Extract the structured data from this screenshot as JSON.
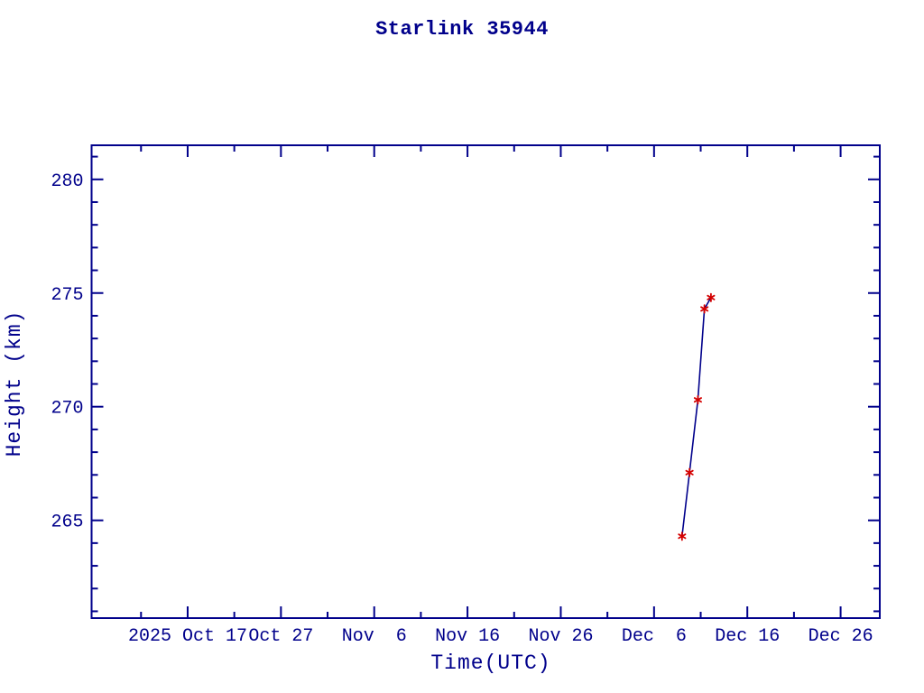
{
  "chart_data": {
    "type": "line",
    "title": "Starlink 35944",
    "xlabel": "Time(UTC)",
    "ylabel": "Height (km)",
    "x_unit": "days since 2025 Oct 07 (UTC)",
    "xlim_days": [
      -0.3,
      84.2
    ],
    "ylim": [
      260.7,
      281.5
    ],
    "grid": false,
    "legend": null,
    "x_major_ticks": [
      {
        "day": 10,
        "label": "2025 Oct 17"
      },
      {
        "day": 20,
        "label": "Oct 27"
      },
      {
        "day": 30,
        "label": "Nov  6"
      },
      {
        "day": 40,
        "label": "Nov 16"
      },
      {
        "day": 50,
        "label": "Nov 26"
      },
      {
        "day": 60,
        "label": "Dec  6"
      },
      {
        "day": 70,
        "label": "Dec 16"
      },
      {
        "day": 80,
        "label": "Dec 26"
      }
    ],
    "x_minor_tick_days": [
      5,
      15,
      25,
      35,
      45,
      55,
      65,
      75
    ],
    "y_major_ticks": [
      265,
      270,
      275,
      280
    ],
    "y_minor_step": 1,
    "colors": {
      "axes": "#00008b",
      "text": "#00008b",
      "line": "#00008b",
      "marker": "#d40000"
    },
    "series": [
      {
        "name": "Height (km)",
        "marker": "asterisk",
        "points": [
          {
            "date_approx": "2025 Dec 9",
            "day": 63.0,
            "height_km": 264.3
          },
          {
            "date_approx": "2025 Dec 10",
            "day": 63.8,
            "height_km": 267.1
          },
          {
            "date_approx": "2025 Dec 11",
            "day": 64.7,
            "height_km": 270.3
          },
          {
            "date_approx": "2025 Dec 11",
            "day": 65.4,
            "height_km": 274.3
          },
          {
            "date_approx": "2025 Dec 12",
            "day": 66.1,
            "height_km": 274.8
          }
        ]
      }
    ]
  }
}
